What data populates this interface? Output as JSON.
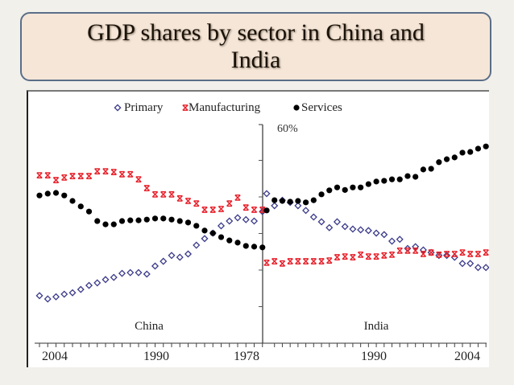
{
  "slide": {
    "title": "GDP shares by sector in China and India"
  },
  "chart_data": {
    "type": "scatter",
    "title": "GDP shares by sector in China and India",
    "legend": [
      "Primary",
      "Manufacturing",
      "Services"
    ],
    "legend_position": "top",
    "ylabel_top": "60%",
    "ylim": [
      0,
      60
    ],
    "y_tick_step": 10,
    "panels": [
      {
        "name": "China",
        "label": "China",
        "x_direction": "reversed",
        "xlim": [
          1978,
          2005
        ],
        "tick_labels": [
          "2004",
          "1990",
          "1978"
        ],
        "years": [
          2005,
          2004,
          2003,
          2002,
          2001,
          2000,
          1999,
          1998,
          1997,
          1996,
          1995,
          1994,
          1993,
          1992,
          1991,
          1990,
          1989,
          1988,
          1987,
          1986,
          1985,
          1984,
          1983,
          1982,
          1981,
          1980,
          1979,
          1978
        ],
        "series": [
          {
            "name": "Primary",
            "color": "#3a3a8a",
            "marker": "diamond-open",
            "values": [
              13.0,
              12.1,
              12.7,
              13.4,
              13.8,
              14.7,
              15.8,
              16.5,
              17.4,
              18.0,
              19.1,
              19.3,
              19.3,
              18.9,
              21.1,
              22.4,
              24.0,
              23.5,
              24.4,
              26.8,
              28.6,
              30.1,
              32.1,
              33.4,
              34.3,
              33.8,
              33.4,
              36.0
            ]
          },
          {
            "name": "Manufacturing",
            "color": "#e8202a",
            "marker": "asterisk",
            "values": [
              45.9,
              45.9,
              44.6,
              45.3,
              45.7,
              45.7,
              45.7,
              47.0,
              47.0,
              46.8,
              46.2,
              46.2,
              44.8,
              42.4,
              40.7,
              40.7,
              40.7,
              39.6,
              38.9,
              38.2,
              36.5,
              36.5,
              36.7,
              38.2,
              39.8,
              37.1,
              36.5,
              36.5
            ]
          },
          {
            "name": "Services",
            "color": "#000000",
            "marker": "dot",
            "values": [
              40.4,
              40.9,
              41.1,
              40.4,
              38.9,
              37.4,
              36.0,
              33.4,
              32.5,
              32.5,
              33.4,
              33.6,
              33.6,
              33.8,
              34.1,
              34.1,
              33.8,
              33.4,
              33.0,
              32.1,
              30.8,
              30.1,
              29.0,
              28.1,
              27.5,
              26.6,
              26.4,
              26.2
            ]
          }
        ]
      },
      {
        "name": "India",
        "label": "India",
        "x_direction": "normal",
        "xlim": [
          1978,
          2006
        ],
        "tick_labels": [
          "1990",
          "2004"
        ],
        "years": [
          1978,
          1979,
          1980,
          1981,
          1982,
          1983,
          1984,
          1985,
          1986,
          1987,
          1988,
          1989,
          1990,
          1991,
          1992,
          1993,
          1994,
          1995,
          1996,
          1997,
          1998,
          1999,
          2000,
          2001,
          2002,
          2003,
          2004,
          2005,
          2006
        ],
        "series": [
          {
            "name": "Primary",
            "color": "#3a3a8a",
            "marker": "diamond-open",
            "values": [
              40.9,
              37.6,
              39.1,
              38.5,
              37.6,
              36.3,
              34.5,
              33.2,
              31.6,
              33.2,
              31.9,
              31.2,
              31.0,
              30.8,
              30.1,
              29.7,
              27.9,
              28.4,
              25.9,
              26.4,
              25.5,
              24.8,
              24.0,
              24.0,
              23.5,
              21.8,
              21.8,
              20.7,
              20.7
            ]
          },
          {
            "name": "Manufacturing",
            "color": "#e8202a",
            "marker": "asterisk",
            "values": [
              22.0,
              22.4,
              21.8,
              22.4,
              22.4,
              22.4,
              22.4,
              22.4,
              22.6,
              23.5,
              23.7,
              23.5,
              24.2,
              23.7,
              23.7,
              24.0,
              24.2,
              25.3,
              25.3,
              25.3,
              24.4,
              24.8,
              24.2,
              24.4,
              24.4,
              24.8,
              24.4,
              24.4,
              24.8
            ]
          },
          {
            "name": "Services",
            "color": "#000000",
            "marker": "dot",
            "values": [
              36.3,
              39.1,
              38.9,
              38.7,
              38.9,
              38.5,
              39.1,
              40.7,
              41.8,
              42.6,
              41.9,
              42.6,
              42.6,
              43.5,
              44.2,
              44.4,
              44.8,
              44.8,
              45.7,
              45.5,
              47.5,
              47.7,
              49.5,
              50.3,
              50.8,
              52.1,
              52.3,
              53.2,
              53.8
            ]
          }
        ]
      }
    ]
  }
}
